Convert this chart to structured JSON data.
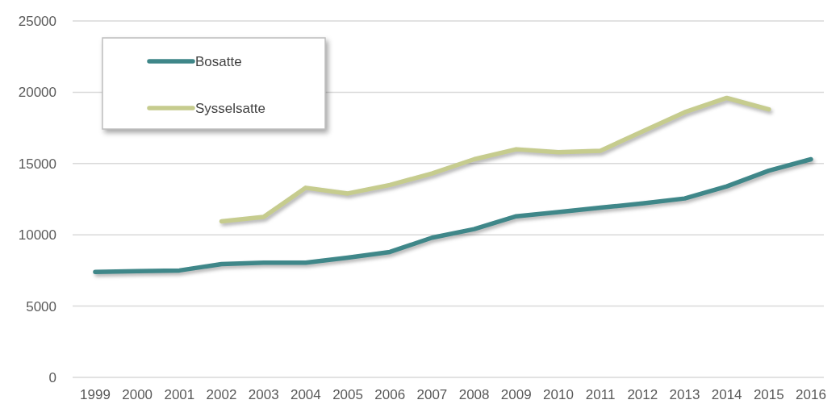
{
  "chart_data": {
    "type": "line",
    "categories": [
      "1999",
      "2000",
      "2001",
      "2002",
      "2003",
      "2004",
      "2005",
      "2006",
      "2007",
      "2008",
      "2009",
      "2010",
      "2011",
      "2012",
      "2013",
      "2014",
      "2015",
      "2016"
    ],
    "series": [
      {
        "name": "Bosatte",
        "color": "#3f8789",
        "values": [
          7400,
          7450,
          7500,
          7950,
          8050,
          8050,
          8400,
          8800,
          9800,
          10400,
          11300,
          11600,
          11900,
          12200,
          12550,
          13400,
          14500,
          15300
        ]
      },
      {
        "name": "Sysselsatte",
        "color": "#c6cc8e",
        "values": [
          null,
          null,
          null,
          10950,
          11250,
          13300,
          12900,
          13500,
          14300,
          15300,
          16000,
          15800,
          15900,
          17250,
          18600,
          19600,
          18800,
          null
        ]
      }
    ],
    "ylim": [
      0,
      25000
    ],
    "yticks": [
      0,
      5000,
      10000,
      15000,
      20000,
      25000
    ],
    "grid": "y",
    "legend": "top left",
    "marker": "none"
  }
}
